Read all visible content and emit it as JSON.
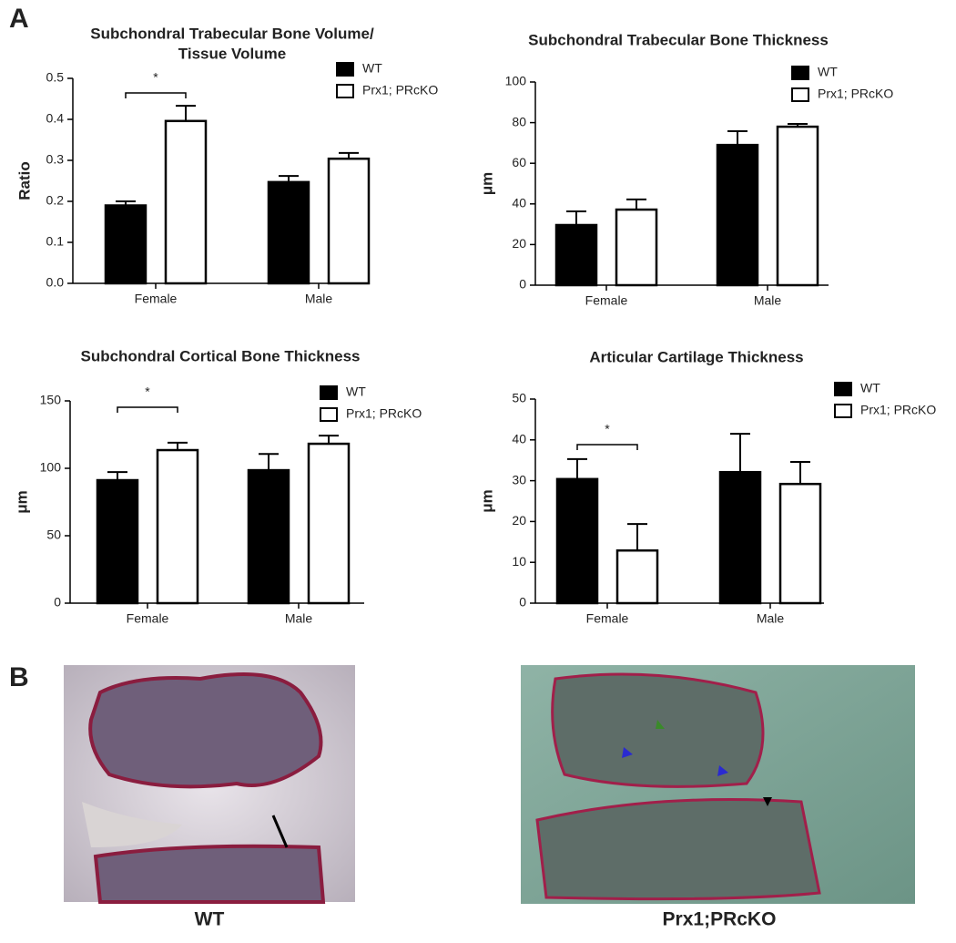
{
  "panel_labels": [
    "A",
    "B"
  ],
  "chart_data": [
    {
      "type": "bar",
      "title": [
        "Subchondral Trabecular Bone Volume/",
        "Tissue Volume"
      ],
      "y_label": "Ratio",
      "categories": [
        "Female",
        "Male"
      ],
      "series": [
        {
          "name": "WT",
          "color": "#000000",
          "values": [
            0.19,
            0.247
          ],
          "errors": [
            0.01,
            0.015
          ]
        },
        {
          "name": "Prx1; PRcKO",
          "color": "#ffffff",
          "values": [
            0.396,
            0.304
          ],
          "errors": [
            0.037,
            0.014
          ]
        }
      ],
      "ylim": [
        0,
        0.5
      ],
      "yticks": [
        {
          "value": 0,
          "label": "0.0"
        },
        0.1,
        0.2,
        0.3,
        0.4,
        0.5
      ],
      "annotation": "*",
      "legend": "upper right"
    },
    {
      "type": "bar",
      "title": [
        "Subchondral Trabecular Bone Thickness"
      ],
      "y_label": "μm",
      "categories": [
        "Female",
        "Male"
      ],
      "series": [
        {
          "name": "WT",
          "color": "#000000",
          "values": [
            29.6,
            69
          ],
          "errors": [
            6.7,
            6.8
          ]
        },
        {
          "name": "Prx1; PRcKO",
          "color": "#ffffff",
          "values": [
            37.2,
            78
          ],
          "errors": [
            5,
            1.4
          ]
        }
      ],
      "ylim": [
        0,
        100
      ],
      "yticks": [
        0,
        20,
        40,
        60,
        80,
        100
      ],
      "legend": "upper right"
    },
    {
      "type": "bar",
      "title": [
        "Subchondral Cortical Bone Thickness"
      ],
      "y_label": "μm",
      "categories": [
        "Female",
        "Male"
      ],
      "series": [
        {
          "name": "WT",
          "color": "#000000",
          "values": [
            91.2,
            98.6
          ],
          "errors": [
            6,
            12
          ]
        },
        {
          "name": "Prx1; PRcKO",
          "color": "#ffffff",
          "values": [
            113.5,
            118.2
          ],
          "errors": [
            5.5,
            6
          ]
        }
      ],
      "ylim": [
        0,
        150
      ],
      "yticks": [
        0,
        50,
        100,
        150
      ],
      "annotation": "*",
      "legend": "upper right"
    },
    {
      "type": "bar",
      "title": [
        "Articular Cartilage Thickness"
      ],
      "y_label": "μm",
      "categories": [
        "Female",
        "Male"
      ],
      "series": [
        {
          "name": "WT",
          "color": "#000000",
          "values": [
            30.4,
            32.1
          ],
          "errors": [
            4.9,
            9.4
          ]
        },
        {
          "name": "Prx1; PRcKO",
          "color": "#ffffff",
          "values": [
            12.9,
            29.2
          ],
          "errors": [
            6.5,
            5.4
          ]
        }
      ],
      "ylim": [
        0,
        50
      ],
      "yticks": [
        0,
        10,
        20,
        30,
        40,
        50
      ],
      "annotation": "*",
      "legend": "upper right"
    }
  ],
  "images": [
    {
      "caption": "WT"
    },
    {
      "caption": "Prx1;PRcKO"
    }
  ]
}
